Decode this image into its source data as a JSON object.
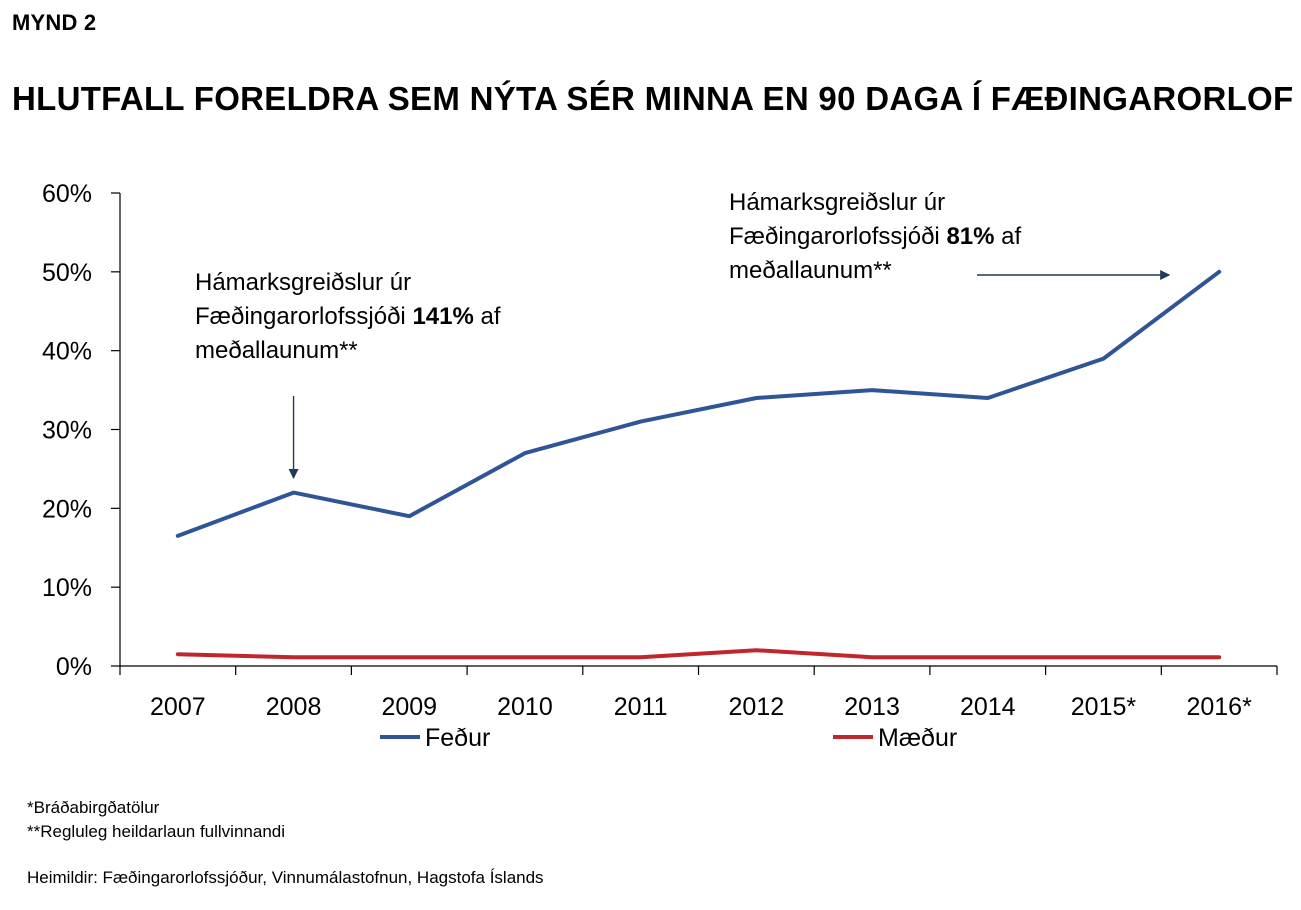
{
  "figure_label": "MYND 2",
  "title": "HLUTFALL FORELDRA SEM NÝTA SÉR MINNA EN 90 DAGA Í FÆÐINGARORLOF",
  "chart_data": {
    "type": "line",
    "categories": [
      "2007",
      "2008",
      "2009",
      "2010",
      "2011",
      "2012",
      "2013",
      "2014",
      "2015*",
      "2016*"
    ],
    "series": [
      {
        "name": "Feður",
        "color": "#2f5597",
        "values": [
          16.5,
          22,
          19,
          27,
          31,
          34,
          35,
          34,
          39,
          50
        ]
      },
      {
        "name": "Mæður",
        "color": "#c0272d",
        "values": [
          1.5,
          1.1,
          1.1,
          1.1,
          1.1,
          2,
          1.1,
          1.1,
          1.1,
          1.1
        ]
      }
    ],
    "y_ticks": [
      "0%",
      "10%",
      "20%",
      "30%",
      "40%",
      "50%",
      "60%"
    ],
    "ylim": [
      0,
      60
    ],
    "grid": false,
    "legend": "bottom",
    "annotations": [
      {
        "lines": [
          {
            "parts": [
              {
                "text": "Hámarksgreiðslur úr",
                "bold": false
              }
            ]
          },
          {
            "parts": [
              {
                "text": "Fæðingarorlofssjóði ",
                "bold": false
              },
              {
                "text": "141%",
                "bold": true
              },
              {
                "text": " af",
                "bold": false
              }
            ]
          },
          {
            "parts": [
              {
                "text": "meðallaunum**",
                "bold": false
              }
            ]
          }
        ],
        "points_to": "2008"
      },
      {
        "lines": [
          {
            "parts": [
              {
                "text": "Hámarksgreiðslur úr",
                "bold": false
              }
            ]
          },
          {
            "parts": [
              {
                "text": "Fæðingarorlofssjóði ",
                "bold": false
              },
              {
                "text": "81%",
                "bold": true
              },
              {
                "text": " af",
                "bold": false
              }
            ]
          },
          {
            "parts": [
              {
                "text": "meðallaunum**",
                "bold": false
              }
            ]
          }
        ],
        "points_to": "2016*"
      }
    ]
  },
  "footnotes": [
    "*Bráðabirgðatölur",
    "**Regluleg heildarlaun fullvinnandi"
  ],
  "source": "Heimildir: Fæðingarorlofssjóður, Vinnumálastofnun, Hagstofa Íslands"
}
